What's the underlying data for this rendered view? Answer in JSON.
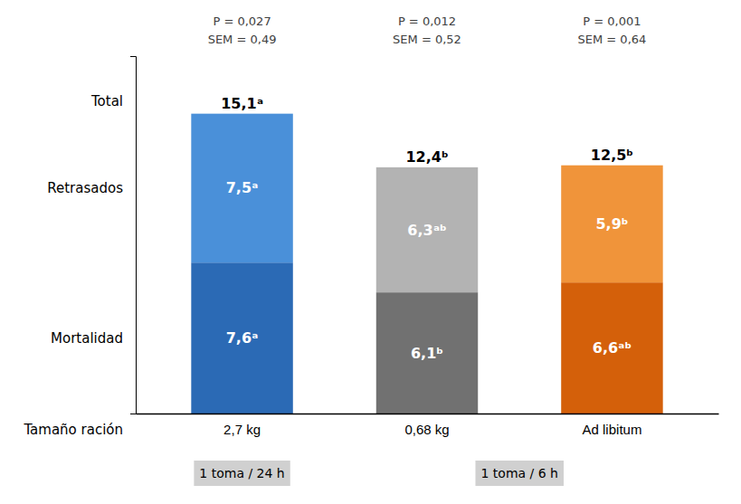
{
  "chart_data": {
    "type": "bar",
    "stacked": true,
    "categories": [
      "2,7 kg",
      "0,68 kg",
      "Ad libitum"
    ],
    "xlabel": "Tamaño ración",
    "series": [
      {
        "name": "Mortalidad",
        "values": [
          7.6,
          6.1,
          6.6
        ],
        "value_labels": [
          "7,6ᵃ",
          "6,1ᵇ",
          "6,6ᵃᵇ"
        ],
        "colors": [
          "#2b6ab5",
          "#717171",
          "#d4600a"
        ]
      },
      {
        "name": "Retrasados",
        "values": [
          7.5,
          6.3,
          5.9
        ],
        "value_labels": [
          "7,5ᵃ",
          "6,3ᵃᵇ",
          "5,9ᵇ"
        ],
        "colors": [
          "#4a90d9",
          "#b3b3b3",
          "#f0943a"
        ]
      }
    ],
    "totals": {
      "name": "Total",
      "values": [
        15.1,
        12.4,
        12.5
      ],
      "value_labels": [
        "15,1ᵃ",
        "12,4ᵇ",
        "12,5ᵇ"
      ]
    },
    "p_labels": [
      "P = 0,027",
      "P = 0,012",
      "P = 0,001"
    ],
    "sem_labels": [
      "SEM = 0,49",
      "SEM = 0,52",
      "SEM = 0,64"
    ],
    "groups": [
      {
        "label": "1 toma / 24 h",
        "span": 1
      },
      {
        "label": "1 toma / 6 h",
        "span": 2
      }
    ],
    "ylim": [
      0,
      18
    ],
    "yticks": [],
    "tick_labels": "x",
    "data_labels": true,
    "grid": false
  }
}
